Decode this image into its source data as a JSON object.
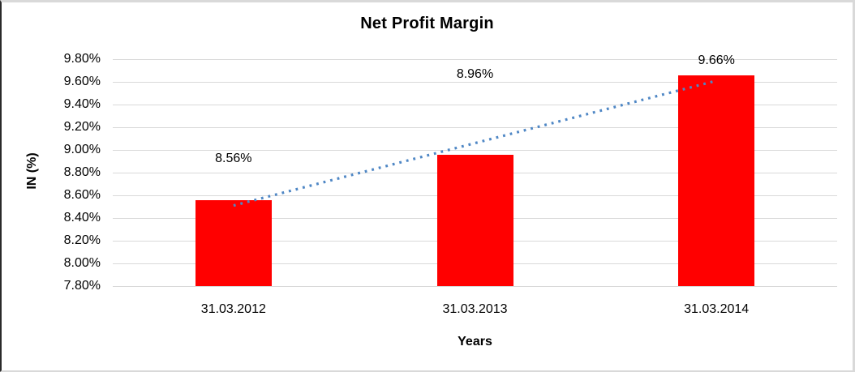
{
  "chart_data": {
    "type": "bar",
    "title": "Net Profit Margin",
    "xlabel": "Years",
    "ylabel": "IN (%)",
    "categories": [
      "31.03.2012",
      "31.03.2013",
      "31.03.2014"
    ],
    "values": [
      8.56,
      8.96,
      9.66
    ],
    "data_labels": [
      "8.56%",
      "8.96%",
      "9.66%"
    ],
    "ylim": [
      7.8,
      9.8
    ],
    "ytick_step": 0.2,
    "ytick_labels": [
      "9.80%",
      "9.60%",
      "9.40%",
      "9.20%",
      "9.00%",
      "8.80%",
      "8.60%",
      "8.40%",
      "8.20%",
      "8.00%",
      "7.80%"
    ],
    "grid": true,
    "legend": false,
    "bar_color": "#ff0000",
    "gridline_color": "#d9d9d9",
    "text_color": "#000000",
    "trendline": {
      "type": "linear",
      "style": "dotted",
      "color": "#4f87c5"
    }
  }
}
